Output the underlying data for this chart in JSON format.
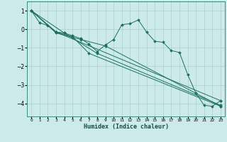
{
  "xlabel": "Humidex (Indice chaleur)",
  "bg_color": "#cdeaea",
  "line_color": "#1a7060",
  "grid_color": "#aacece",
  "xlim": [
    -0.5,
    23.5
  ],
  "ylim": [
    -4.7,
    1.5
  ],
  "yticks": [
    1,
    0,
    -1,
    -2,
    -3,
    -4
  ],
  "xticks": [
    0,
    1,
    2,
    3,
    4,
    5,
    6,
    7,
    8,
    9,
    10,
    11,
    12,
    13,
    14,
    15,
    16,
    17,
    18,
    19,
    20,
    21,
    22,
    23
  ],
  "main_line": [
    [
      0,
      1.0
    ],
    [
      1,
      0.35
    ],
    [
      2,
      0.2
    ],
    [
      3,
      -0.15
    ],
    [
      4,
      -0.2
    ],
    [
      5,
      -0.35
    ],
    [
      6,
      -0.5
    ],
    [
      7,
      -0.8
    ],
    [
      8,
      -1.2
    ],
    [
      9,
      -0.85
    ],
    [
      10,
      -0.55
    ],
    [
      11,
      0.25
    ],
    [
      12,
      0.3
    ],
    [
      13,
      0.5
    ],
    [
      14,
      -0.15
    ],
    [
      15,
      -0.65
    ],
    [
      16,
      -0.7
    ],
    [
      17,
      -1.15
    ],
    [
      18,
      -1.25
    ],
    [
      19,
      -2.45
    ],
    [
      20,
      -3.45
    ],
    [
      21,
      -4.1
    ],
    [
      22,
      -4.15
    ],
    [
      23,
      -3.85
    ]
  ],
  "line1": [
    [
      0,
      1.0
    ],
    [
      3,
      -0.15
    ],
    [
      23,
      -3.85
    ]
  ],
  "line2": [
    [
      0,
      1.0
    ],
    [
      4,
      -0.2
    ],
    [
      8,
      -1.3
    ],
    [
      23,
      -4.1
    ]
  ],
  "line3": [
    [
      0,
      1.0
    ],
    [
      3,
      -0.2
    ],
    [
      6,
      -0.55
    ],
    [
      9,
      -0.9
    ],
    [
      23,
      -4.15
    ]
  ],
  "line4": [
    [
      0,
      1.0
    ],
    [
      3,
      -0.15
    ],
    [
      5,
      -0.4
    ],
    [
      7,
      -1.3
    ],
    [
      23,
      -4.15
    ]
  ]
}
